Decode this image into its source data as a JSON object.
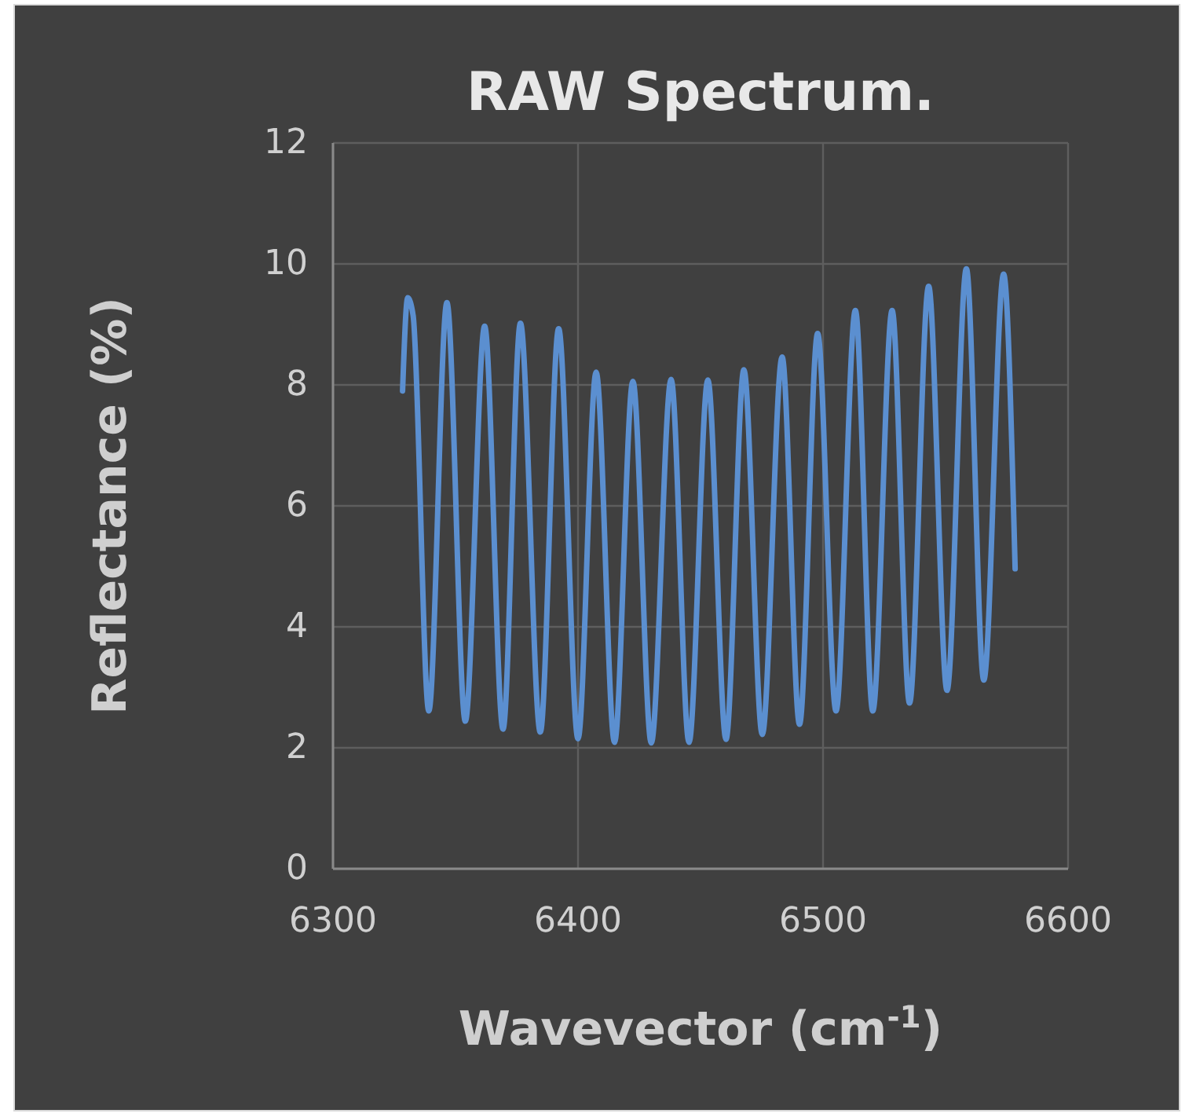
{
  "chart_data": {
    "type": "line",
    "title": "RAW Spectrum.",
    "xlabel": "Wavevector (cm$^{-1}$)",
    "ylabel": "Reflectance (%)",
    "x": [
      6328.4,
      6330.5,
      6332.7,
      6339.1,
      6346.5,
      6354.0,
      6361.9,
      6369.4,
      6376.5,
      6384.6,
      6392.1,
      6400.0,
      6407.4,
      6414.9,
      6422.4,
      6429.9,
      6438.0,
      6445.3,
      6453.0,
      6460.4,
      6467.7,
      6475.2,
      6483.3,
      6490.4,
      6497.8,
      6505.3,
      6513.2,
      6520.3,
      6528.2,
      6535.3,
      6543.1,
      6550.6,
      6558.5,
      6565.6,
      6573.7,
      6578.4
    ],
    "series": [
      {
        "color": "#5b8fd0",
        "values": [
          7.9,
          9.44,
          9.15,
          2.61,
          9.36,
          2.44,
          8.97,
          2.31,
          9.02,
          2.26,
          8.93,
          2.15,
          8.21,
          2.09,
          8.06,
          2.08,
          8.09,
          2.09,
          8.08,
          2.14,
          8.25,
          2.22,
          8.46,
          2.39,
          8.85,
          2.61,
          9.23,
          2.61,
          9.23,
          2.74,
          9.63,
          2.95,
          9.92,
          3.12,
          9.83,
          4.96
        ]
      }
    ],
    "xlim": [
      6300,
      6600
    ],
    "xticks": [
      6300,
      6400,
      6500,
      6600
    ],
    "ylim": [
      0,
      12
    ],
    "yticks": [
      0,
      2,
      4,
      6,
      8,
      10,
      12
    ],
    "grid": true,
    "marker": "none",
    "line_style": "solid"
  }
}
